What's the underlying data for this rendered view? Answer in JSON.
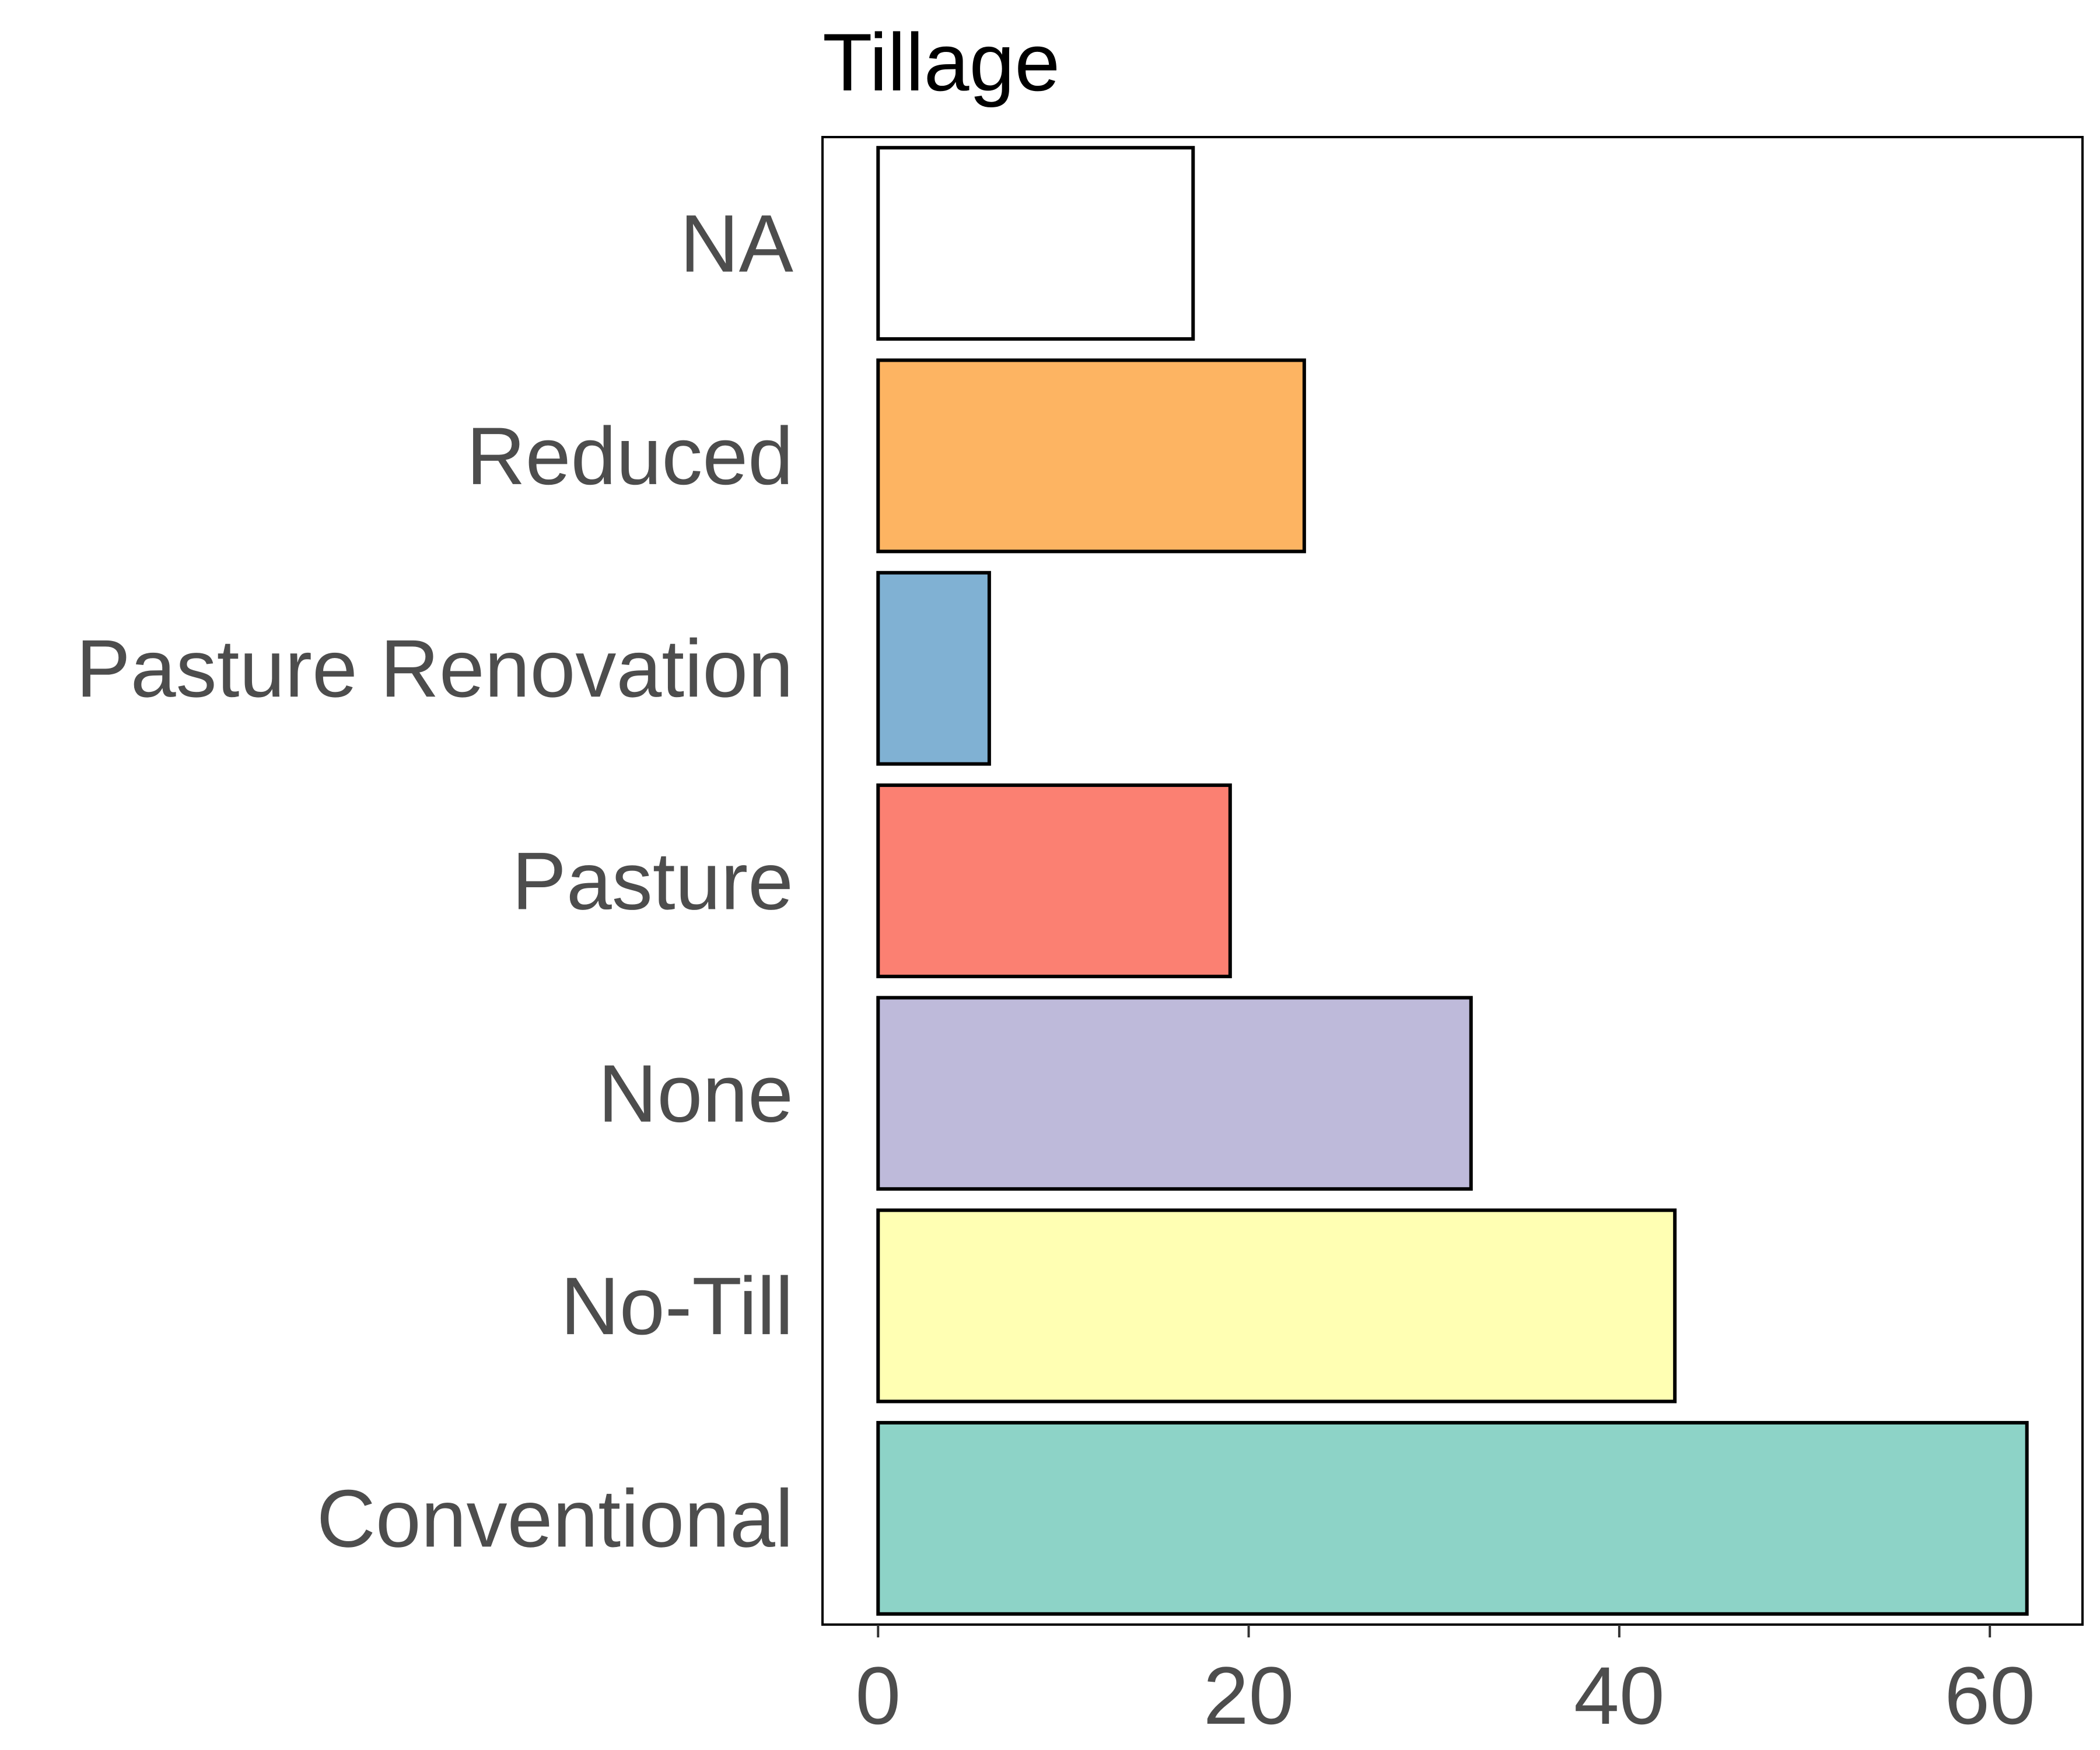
{
  "chart_data": {
    "type": "bar",
    "orientation": "horizontal",
    "title": "Tillage",
    "xlabel": "",
    "ylabel": "",
    "categories": [
      "Conventional",
      "No-Till",
      "None",
      "Pasture",
      "Pasture Renovation",
      "Reduced",
      "NA"
    ],
    "values": [
      62,
      43,
      32,
      19,
      6,
      23,
      17
    ],
    "colors": [
      "#8dd3c7",
      "#ffffb3",
      "#bebada",
      "#fb8072",
      "#80b1d3",
      "#fdb462",
      "#ffffff"
    ],
    "xlim": [
      -3,
      65
    ],
    "xticks": [
      0,
      20,
      40,
      60
    ],
    "xtick_labels": [
      "0",
      "20",
      "40",
      "60"
    ],
    "grid": false,
    "legend": "none",
    "bar_outline_color": "#000000",
    "axis_text_color": "#4d4d4d",
    "title_color": "#000000"
  }
}
